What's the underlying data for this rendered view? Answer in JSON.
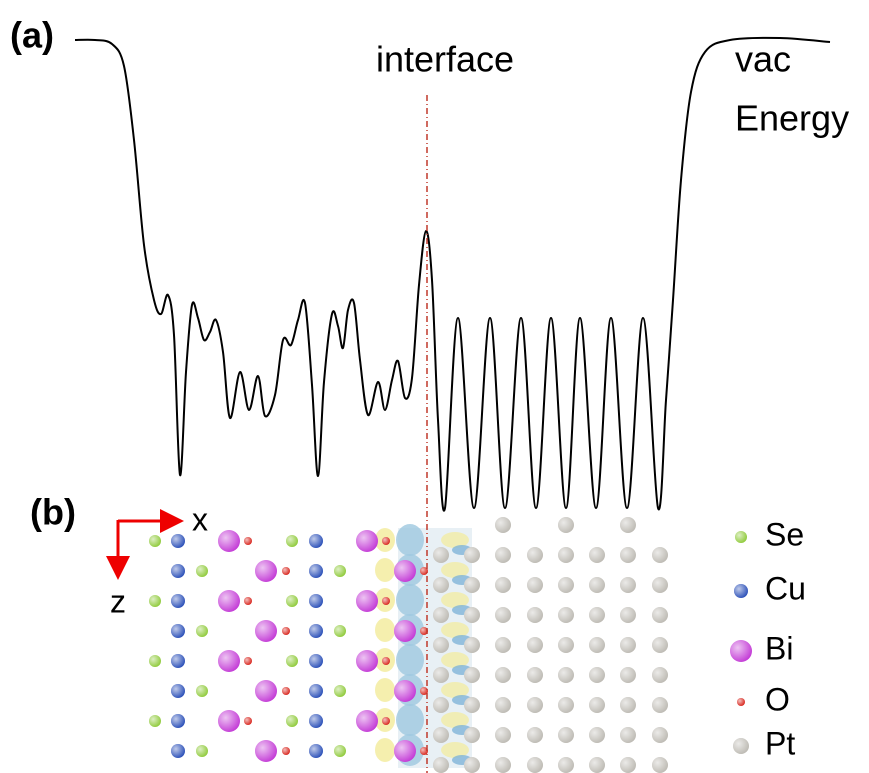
{
  "panel_a": {
    "label": "(a)",
    "interface_label": "interface",
    "vacuum_label": "vac",
    "energy_label": "Energy"
  },
  "panel_b": {
    "label": "(b)",
    "axis_x": "x",
    "axis_z": "z",
    "legend": [
      {
        "element": "Se",
        "color": "#8fca3a"
      },
      {
        "element": "Cu",
        "color": "#2a4fb8"
      },
      {
        "element": "Bi",
        "color": "#c33ad6"
      },
      {
        "element": "O",
        "color": "#d8241c"
      },
      {
        "element": "Pt",
        "color": "#bdbab3"
      }
    ]
  }
}
